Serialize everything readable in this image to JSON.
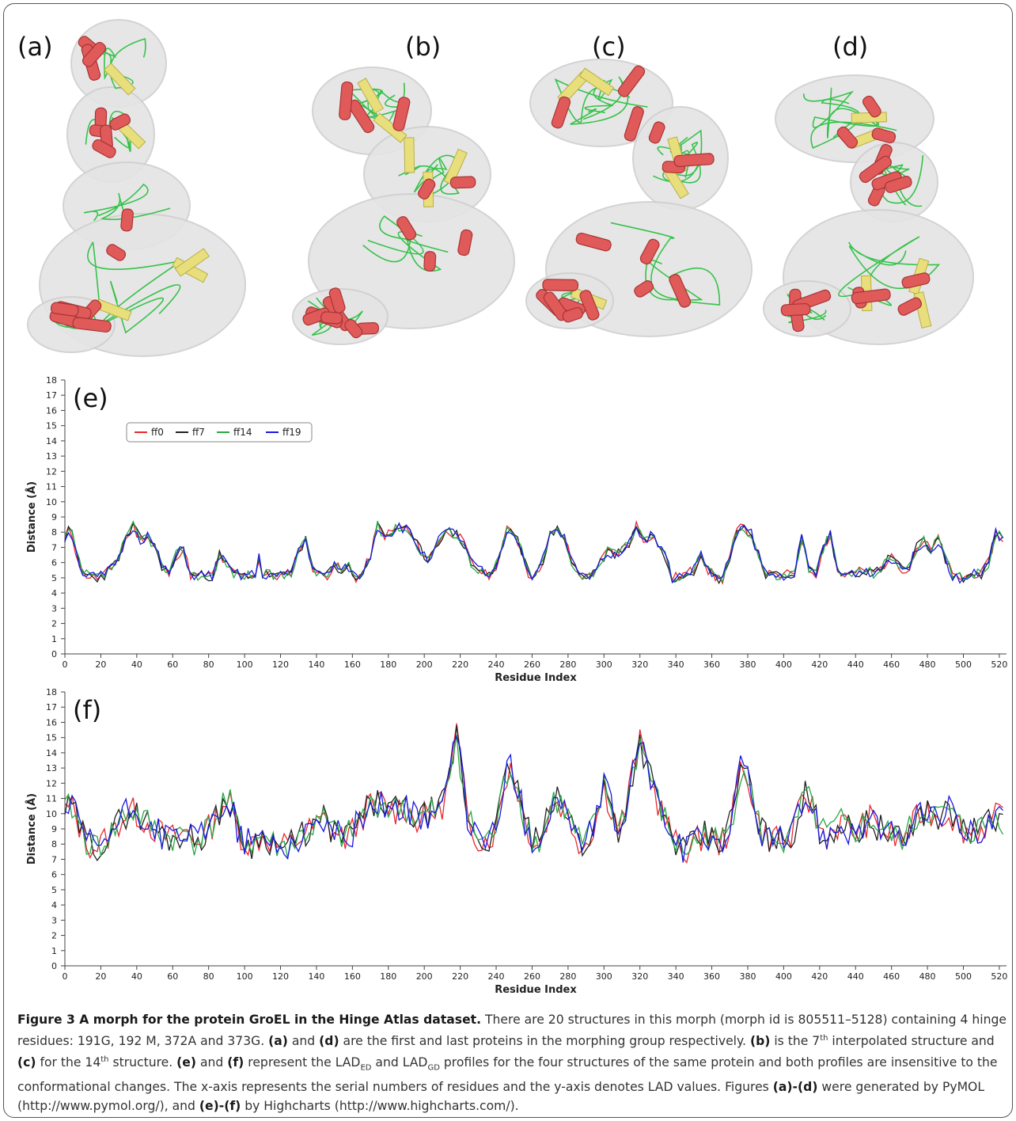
{
  "panels": {
    "labels": [
      "(a)",
      "(b)",
      "(c)",
      "(d)"
    ],
    "colors": {
      "helix": "#e05a5a",
      "helix_dark": "#a83434",
      "sheet": "#e8df7c",
      "loop": "#36c24a",
      "surface": "#e4e4e4"
    }
  },
  "series_colors": {
    "ff0": "#e8292f",
    "ff7": "#222222",
    "ff14": "#27a845",
    "ff19": "#1a1ae0"
  },
  "chart_data": [
    {
      "panel": "(e)",
      "type": "line",
      "xlabel": "Residue Index",
      "ylabel": "Distance (Å)",
      "xlim": [
        0,
        524
      ],
      "ylim": [
        0,
        18
      ],
      "xticks": [
        0,
        20,
        40,
        60,
        80,
        100,
        120,
        140,
        160,
        180,
        200,
        220,
        240,
        260,
        280,
        300,
        320,
        340,
        360,
        380,
        400,
        420,
        440,
        460,
        480,
        500,
        520
      ],
      "yticks": [
        0,
        1,
        2,
        3,
        4,
        5,
        6,
        7,
        8,
        9,
        10,
        11,
        12,
        13,
        14,
        15,
        16,
        17,
        18
      ],
      "legend": "top-left",
      "grid": false,
      "series": [
        {
          "name": "ff0",
          "color": "#e8292f",
          "seed": 11
        },
        {
          "name": "ff7",
          "color": "#222222",
          "seed": 23
        },
        {
          "name": "ff14",
          "color": "#27a845",
          "seed": 37
        },
        {
          "name": "ff19",
          "color": "#1a1ae0",
          "seed": 51
        }
      ],
      "x": [
        0,
        3,
        6,
        10,
        14,
        18,
        22,
        26,
        30,
        35,
        38,
        42,
        46,
        50,
        54,
        58,
        62,
        66,
        70,
        74,
        78,
        82,
        86,
        90,
        94,
        98,
        102,
        106,
        108,
        110,
        114,
        118,
        122,
        126,
        130,
        134,
        138,
        142,
        146,
        150,
        154,
        158,
        162,
        166,
        170,
        174,
        178,
        182,
        186,
        190,
        194,
        198,
        202,
        206,
        210,
        214,
        218,
        222,
        226,
        230,
        234,
        238,
        242,
        246,
        250,
        254,
        258,
        262,
        266,
        270,
        274,
        278,
        282,
        286,
        290,
        294,
        298,
        302,
        306,
        310,
        314,
        318,
        322,
        326,
        330,
        334,
        338,
        342,
        346,
        350,
        354,
        358,
        362,
        366,
        370,
        374,
        378,
        382,
        386,
        390,
        394,
        398,
        402,
        406,
        410,
        414,
        418,
        422,
        426,
        430,
        434,
        438,
        442,
        446,
        450,
        454,
        458,
        462,
        466,
        470,
        474,
        478,
        482,
        486,
        490,
        494,
        498,
        502,
        506,
        510,
        514,
        518,
        522
      ],
      "base": [
        7.6,
        8.3,
        6.8,
        5.3,
        5.1,
        5.0,
        5.2,
        5.6,
        6.4,
        7.8,
        8.4,
        7.5,
        7.8,
        7.0,
        5.8,
        5.2,
        6.5,
        6.9,
        5.2,
        5.1,
        5.2,
        5.1,
        6.5,
        5.8,
        5.3,
        5.1,
        5.2,
        5.2,
        6.3,
        5.2,
        5.2,
        5.1,
        5.1,
        5.4,
        6.9,
        7.4,
        5.7,
        5.1,
        5.2,
        5.9,
        5.4,
        5.7,
        5.0,
        5.3,
        6.5,
        8.4,
        7.8,
        8.0,
        8.4,
        8.2,
        7.5,
        6.8,
        6.2,
        7.1,
        7.8,
        8.0,
        7.9,
        7.2,
        6.0,
        5.6,
        5.2,
        5.2,
        6.5,
        8.1,
        8.0,
        6.8,
        5.3,
        5.1,
        6.2,
        7.8,
        8.1,
        7.6,
        6.1,
        5.3,
        5.0,
        5.4,
        6.0,
        6.8,
        6.5,
        6.9,
        7.2,
        8.5,
        7.5,
        7.8,
        7.3,
        6.5,
        5.0,
        5.1,
        5.3,
        5.5,
        6.7,
        5.5,
        5.0,
        4.9,
        6.4,
        8.1,
        8.3,
        7.9,
        6.5,
        5.3,
        5.1,
        5.1,
        5.2,
        5.4,
        7.6,
        5.6,
        5.3,
        7.0,
        7.8,
        5.4,
        5.2,
        5.3,
        5.4,
        5.5,
        5.3,
        5.6,
        6.2,
        6.3,
        5.6,
        5.7,
        7.0,
        7.4,
        6.8,
        7.5,
        6.3,
        5.1,
        5.0,
        5.1,
        5.3,
        5.2,
        6.0,
        7.9,
        7.6
      ]
    },
    {
      "panel": "(f)",
      "type": "line",
      "xlabel": "Residue Index",
      "ylabel": "Distance (Å)",
      "xlim": [
        0,
        524
      ],
      "ylim": [
        0,
        18
      ],
      "xticks": [
        0,
        20,
        40,
        60,
        80,
        100,
        120,
        140,
        160,
        180,
        200,
        220,
        240,
        260,
        280,
        300,
        320,
        340,
        360,
        380,
        400,
        420,
        440,
        460,
        480,
        500,
        520
      ],
      "yticks": [
        0,
        1,
        2,
        3,
        4,
        5,
        6,
        7,
        8,
        9,
        10,
        11,
        12,
        13,
        14,
        15,
        16,
        17,
        18
      ],
      "grid": false,
      "series": [
        {
          "name": "ff0",
          "color": "#e8292f",
          "seed": 13
        },
        {
          "name": "ff7",
          "color": "#222222",
          "seed": 29
        },
        {
          "name": "ff14",
          "color": "#27a845",
          "seed": 41
        },
        {
          "name": "ff19",
          "color": "#1a1ae0",
          "seed": 57
        }
      ],
      "x": [
        0,
        4,
        8,
        12,
        16,
        20,
        24,
        28,
        32,
        36,
        40,
        44,
        48,
        52,
        56,
        60,
        64,
        68,
        72,
        76,
        80,
        84,
        88,
        92,
        96,
        100,
        104,
        108,
        112,
        116,
        120,
        124,
        128,
        132,
        136,
        140,
        144,
        148,
        152,
        156,
        160,
        164,
        168,
        172,
        176,
        180,
        184,
        188,
        192,
        196,
        200,
        204,
        208,
        212,
        216,
        218,
        220,
        224,
        228,
        232,
        236,
        240,
        244,
        248,
        252,
        256,
        260,
        264,
        268,
        272,
        276,
        280,
        284,
        288,
        292,
        296,
        300,
        304,
        308,
        312,
        316,
        320,
        324,
        328,
        332,
        336,
        340,
        344,
        348,
        352,
        356,
        360,
        364,
        368,
        372,
        376,
        380,
        384,
        388,
        392,
        396,
        400,
        404,
        408,
        412,
        416,
        420,
        424,
        428,
        432,
        436,
        440,
        444,
        448,
        452,
        456,
        460,
        464,
        468,
        472,
        476,
        480,
        484,
        488,
        492,
        496,
        500,
        504,
        508,
        512,
        516,
        520,
        522
      ],
      "base": [
        10.2,
        10.4,
        9.2,
        8.2,
        7.8,
        8.0,
        8.5,
        9.0,
        9.8,
        10.2,
        10.0,
        9.6,
        9.2,
        8.8,
        8.5,
        8.4,
        8.6,
        8.8,
        8.2,
        8.6,
        9.0,
        9.6,
        10.8,
        10.6,
        9.0,
        8.2,
        8.0,
        8.4,
        8.6,
        8.0,
        7.8,
        7.9,
        8.1,
        8.6,
        8.9,
        9.2,
        9.6,
        9.0,
        8.6,
        8.4,
        8.8,
        9.6,
        10.2,
        10.6,
        10.8,
        10.4,
        10.2,
        10.6,
        10.0,
        9.6,
        9.8,
        10.2,
        10.0,
        11.2,
        13.8,
        15.5,
        13.4,
        9.8,
        8.8,
        8.2,
        8.4,
        9.0,
        11.8,
        13.2,
        11.6,
        9.6,
        8.4,
        8.0,
        9.4,
        11.0,
        10.6,
        9.8,
        8.8,
        7.8,
        8.6,
        9.8,
        11.8,
        10.4,
        9.0,
        10.2,
        12.8,
        14.6,
        13.4,
        11.4,
        10.2,
        9.0,
        8.0,
        7.6,
        7.8,
        8.2,
        8.6,
        8.4,
        8.0,
        8.6,
        10.2,
        13.0,
        12.6,
        10.0,
        8.8,
        8.4,
        8.6,
        8.0,
        8.4,
        9.8,
        11.2,
        10.4,
        9.0,
        8.6,
        9.0,
        9.4,
        9.0,
        8.8,
        9.2,
        9.6,
        9.2,
        8.8,
        8.6,
        8.2,
        8.6,
        9.2,
        10.0,
        10.2,
        10.0,
        9.8,
        10.2,
        9.4,
        9.0,
        8.8,
        9.0,
        9.2,
        9.6,
        9.8,
        9.6
      ]
    }
  ],
  "caption": {
    "title": "Figure 3 A morph for the protein GroEL in the Hinge Atlas dataset.",
    "s1": " There are 20 structures in this morph (morph id is 805511–5128) containing 4 hinge residues: 191G, 192 M, 372A and 373G. ",
    "a": "(a)",
    "s2": " and ",
    "d": "(d)",
    "s3": " are the first and last proteins in the morphing group respectively. ",
    "b": "(b)",
    "s4": " is the 7",
    "sup1": "th",
    "s5": " interpolated structure and ",
    "c": "(c)",
    "s6": " for the 14",
    "sup2": "th",
    "s7": " structure. ",
    "e": "(e)",
    "s8": " and ",
    "f": "(f)",
    "s9": " represent the LAD",
    "sub1": "ED",
    "s10": " and LAD",
    "sub2": "GD",
    "s11": " profiles for the four structures of the same protein and both profiles are insensitive to the conformational changes. The x-axis represents the serial numbers of residues and the y-axis denotes LAD values. Figures ",
    "ad": "(a)-(d)",
    "s12": " were generated by PyMOL (http://www.pymol.org/), and ",
    "ef": "(e)-(f)",
    "s13": " by Highcharts (http://www.highcharts.com/)."
  }
}
